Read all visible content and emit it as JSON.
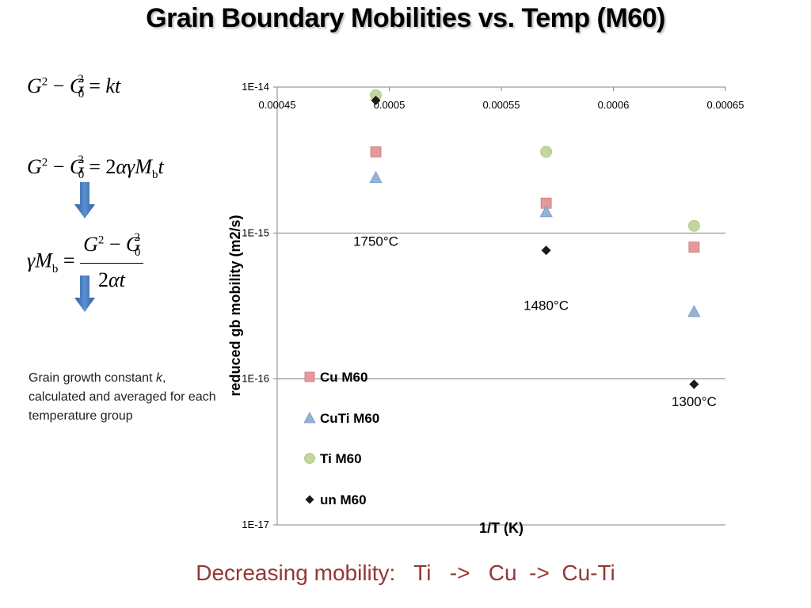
{
  "page": {
    "title": "Grain Boundary Mobilities vs. Temp (M60)",
    "note_pre": "Grain growth constant ",
    "note_k": "k",
    "note_post": ", calculated and averaged for each temperature group",
    "bottom_text": "Decreasing mobility:   Ti   ->   Cu  ->  Cu-Ti",
    "arrow_color": "#4a7ebb"
  },
  "equations": {
    "eq1": "G² − G₀² = kt",
    "eq2": "G² − G₀² = 2αγM_b t",
    "eq3": "γM_b = (G² − G₀²) / 2αt"
  },
  "chart_data": {
    "type": "scatter",
    "xlabel": "1/T (K)",
    "ylabel": "reduced gb mobility (m2/s)",
    "xlim": [
      0.00045,
      0.00065
    ],
    "x_ticks": [
      "0.00045",
      "0.0005",
      "0.00055",
      "0.0006",
      "0.00065"
    ],
    "y_scale": "log",
    "ylim": [
      1e-17,
      1e-14
    ],
    "y_ticks": [
      "1E-14",
      "1E-15",
      "1E-16",
      "1E-17"
    ],
    "x_axis_position": "top",
    "grid": "horizontal",
    "legend_position": "inside-left",
    "series": [
      {
        "name": "Cu M60",
        "marker": "square",
        "color": "#e6999b",
        "x": [
          0.000494,
          0.00057,
          0.000636
        ],
        "y": [
          3.6e-15,
          1.6e-15,
          8e-16
        ]
      },
      {
        "name": "CuTi M60",
        "marker": "triangle",
        "color": "#95b3d7",
        "x": [
          0.000494,
          0.00057,
          0.000636
        ],
        "y": [
          2.4e-15,
          1.4e-15,
          2.9e-16
        ]
      },
      {
        "name": "Ti M60",
        "marker": "circle",
        "color": "#c3d69b",
        "x": [
          0.000494,
          0.00057,
          0.000636
        ],
        "y": [
          8.8e-15,
          3.6e-15,
          1.12e-15
        ]
      },
      {
        "name": "un M60",
        "marker": "diamond",
        "color": "#1a1a1a",
        "x": [
          0.000494,
          0.00057,
          0.000636
        ],
        "y": [
          8.1e-15,
          7.6e-16,
          9.2e-17
        ]
      }
    ],
    "annotations": [
      {
        "text": "1750°C",
        "x": 0.000494,
        "y": 8.8e-16
      },
      {
        "text": "1480°C",
        "x": 0.00057,
        "y": 3.2e-16
      },
      {
        "text": "1300°C",
        "x": 0.000636,
        "y": 7e-17
      }
    ]
  }
}
